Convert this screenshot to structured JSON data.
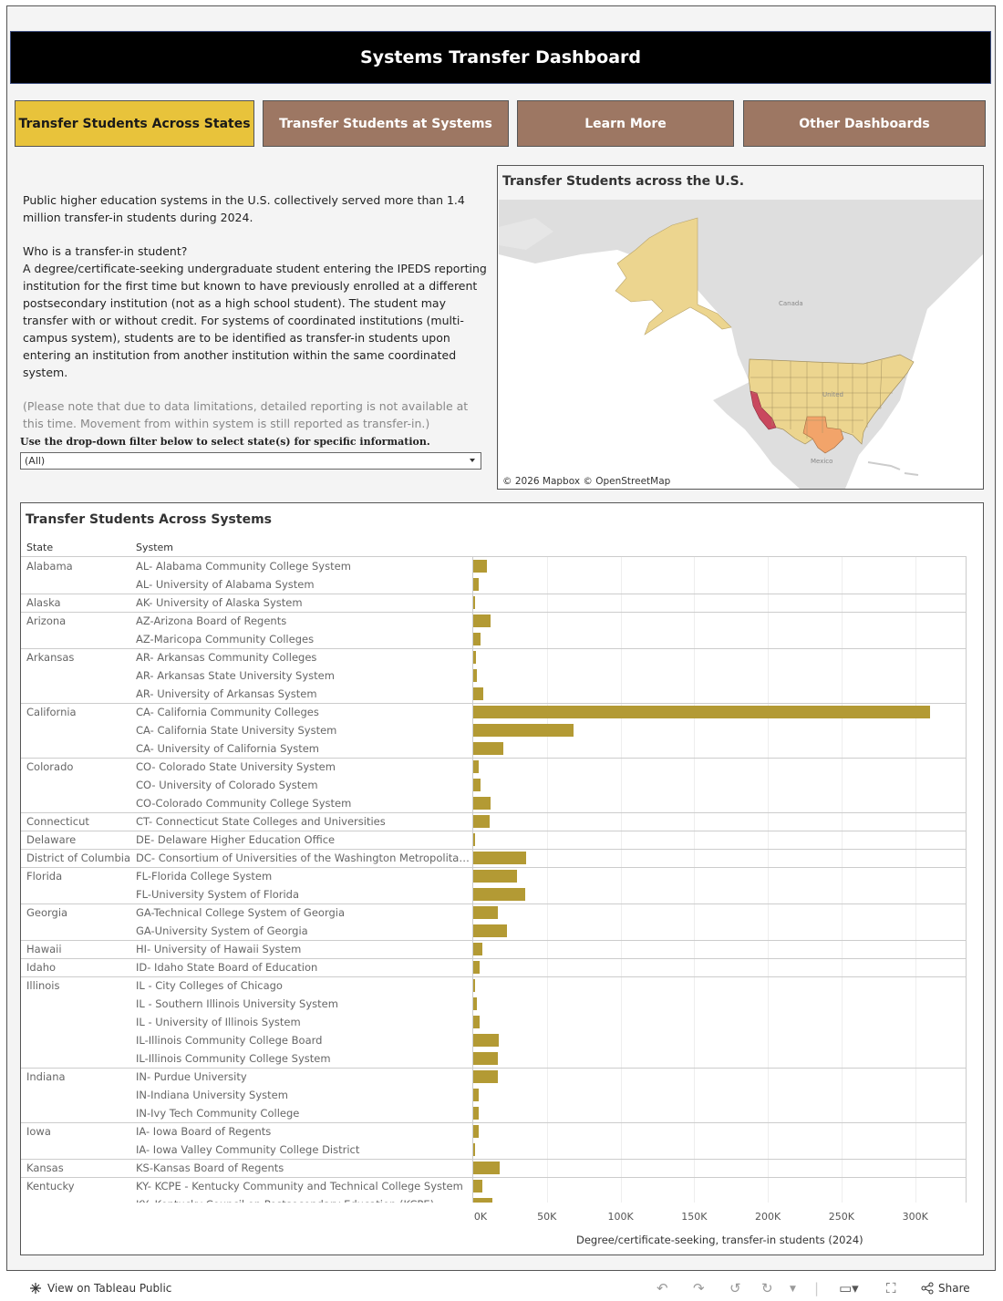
{
  "header": {
    "title": "Systems Transfer Dashboard"
  },
  "nav": [
    {
      "label": "Transfer Students Across States"
    },
    {
      "label": "Transfer Students at Systems"
    },
    {
      "label": "Learn More"
    },
    {
      "label": "Other Dashboards"
    }
  ],
  "intro": {
    "summary": "Public higher education systems in the U.S. collectively served more than 1.4 million transfer-in students during 2024.",
    "question": "Who is a transfer-in student?",
    "definition": "A degree/certificate-seeking undergraduate student entering the IPEDS reporting institution for the first time but known to have previously enrolled at a different postsecondary institution (not as a high school student). The student may transfer with or without credit. For systems of coordinated institutions (multi-campus system), students are to be identified as transfer-in students upon entering an institution from another institution within the same coordinated system.",
    "note": "(Please note that due to data limitations, detailed reporting is not available at this time. Movement from within system is still reported as transfer-in.)"
  },
  "filter": {
    "label": "Use the drop-down filter below to select state(s) for specific information.",
    "selected": "(All)"
  },
  "map": {
    "title": "Transfer Students across the U.S.",
    "attribution": "© 2026 Mapbox © OpenStreetMap",
    "labels": {
      "canada": "Canada",
      "us": "United",
      "mexico": "Mexico"
    },
    "colors": {
      "low": "#ecd58f",
      "mid": "#f2a46a",
      "high": "#c9485e",
      "land": "#dedede",
      "water": "#ffffff"
    }
  },
  "systems": {
    "title": "Transfer Students Across Systems",
    "col_state": "State",
    "col_system": "System",
    "x_axis_title": "Degree/certificate-seeking, transfer-in students (2024)",
    "bar_color": "#b39a34"
  },
  "chart_data": {
    "type": "bar",
    "orientation": "horizontal",
    "xlabel": "Degree/certificate-seeking, transfer-in students (2024)",
    "xlim": [
      0,
      320000
    ],
    "x_ticks": [
      "0K",
      "50K",
      "100K",
      "150K",
      "200K",
      "250K",
      "300K"
    ],
    "rows": [
      {
        "state": "Alabama",
        "system": "AL- Alabama Community College System",
        "value": 9000
      },
      {
        "state": "",
        "system": "AL- University of Alabama System",
        "value": 3500
      },
      {
        "state": "Alaska",
        "system": "AK- University of Alaska System",
        "value": 1200
      },
      {
        "state": "Arizona",
        "system": "AZ-Arizona Board of Regents",
        "value": 12000
      },
      {
        "state": "",
        "system": "AZ-Maricopa Community Colleges",
        "value": 5000
      },
      {
        "state": "Arkansas",
        "system": "AR- Arkansas Community Colleges",
        "value": 1800
      },
      {
        "state": "",
        "system": "AR- Arkansas State University System",
        "value": 2500
      },
      {
        "state": "",
        "system": "AR- University of Arkansas System",
        "value": 6500
      },
      {
        "state": "California",
        "system": "CA- California Community Colleges",
        "value": 310000
      },
      {
        "state": "",
        "system": "CA- California State University System",
        "value": 68000
      },
      {
        "state": "",
        "system": "CA- University of California System",
        "value": 20500
      },
      {
        "state": "Colorado",
        "system": "CO- Colorado State University System",
        "value": 4000
      },
      {
        "state": "",
        "system": "CO- University of Colorado System",
        "value": 4800
      },
      {
        "state": "",
        "system": "CO-Colorado Community College System",
        "value": 12000
      },
      {
        "state": "Connecticut",
        "system": "CT- Connecticut State Colleges and Universities",
        "value": 11000
      },
      {
        "state": "Delaware",
        "system": "DE- Delaware Higher Education Office",
        "value": 1200
      },
      {
        "state": "District of Columbia",
        "system": "DC- Consortium of Universities of the Washington Metropolitan Area",
        "value": 36000
      },
      {
        "state": "Florida",
        "system": "FL-Florida College System",
        "value": 30000
      },
      {
        "state": "",
        "system": "FL-University System of Florida",
        "value": 35000
      },
      {
        "state": "Georgia",
        "system": "GA-Technical College System of Georgia",
        "value": 17000
      },
      {
        "state": "",
        "system": "GA-University System of Georgia",
        "value": 23000
      },
      {
        "state": "Hawaii",
        "system": "HI- University of Hawaii System",
        "value": 6000
      },
      {
        "state": "Idaho",
        "system": "ID- Idaho State Board of Education",
        "value": 4500
      },
      {
        "state": "Illinois",
        "system": "IL - City Colleges of Chicago",
        "value": 400
      },
      {
        "state": "",
        "system": "IL - Southern Illinois University System",
        "value": 2500
      },
      {
        "state": "",
        "system": "IL - University of Illinois System",
        "value": 4500
      },
      {
        "state": "",
        "system": "IL-Illinois Community College Board",
        "value": 17500
      },
      {
        "state": "",
        "system": "IL-Illinois Community College System",
        "value": 16500
      },
      {
        "state": "Indiana",
        "system": "IN- Purdue University",
        "value": 17000
      },
      {
        "state": "",
        "system": "IN-Indiana University System",
        "value": 3500
      },
      {
        "state": "",
        "system": "IN-Ivy Tech Community College",
        "value": 4000
      },
      {
        "state": "Iowa",
        "system": "IA- Iowa Board of Regents",
        "value": 3500
      },
      {
        "state": "",
        "system": "IA- Iowa Valley Community College District",
        "value": 400
      },
      {
        "state": "Kansas",
        "system": "KS-Kansas Board of Regents",
        "value": 18000
      },
      {
        "state": "Kentucky",
        "system": "KY- KCPE - Kentucky Community and Technical College System",
        "value": 6000
      },
      {
        "state": "",
        "system": "KY- Kentucky Council on Postsecondary Education (KCPE)",
        "value": 13000
      }
    ]
  },
  "footer": {
    "view_link": "View on Tableau Public",
    "share": "Share"
  }
}
